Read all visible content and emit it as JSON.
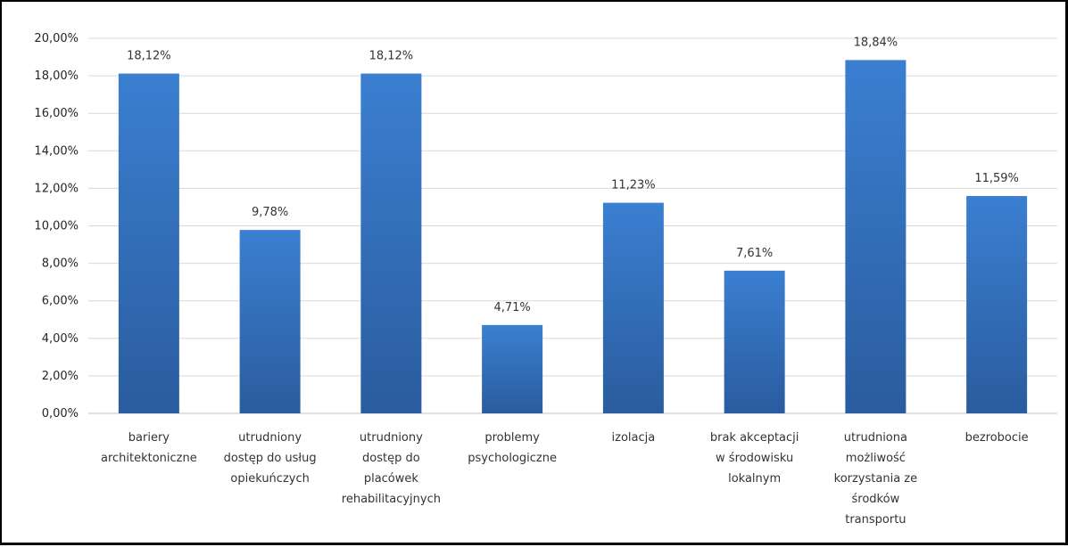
{
  "chart_data": {
    "type": "bar",
    "categories": [
      [
        "bariery",
        "architektoniczne"
      ],
      [
        "utrudniony",
        "dostęp do usług",
        "opiekuńczych"
      ],
      [
        "utrudniony",
        "dostęp do",
        "placówek",
        "rehabilitacyjnych"
      ],
      [
        "problemy",
        "psychologiczne"
      ],
      [
        "izolacja"
      ],
      [
        "brak akceptacji",
        "w środowisku",
        "lokalnym"
      ],
      [
        "utrudniona",
        "możliwość",
        "korzystania ze",
        "środków",
        "transportu"
      ],
      [
        "bezrobocie"
      ]
    ],
    "values": [
      18.12,
      9.78,
      18.12,
      4.71,
      11.23,
      7.61,
      18.84,
      11.59
    ],
    "value_labels": [
      "18,12%",
      "9,78%",
      "18,12%",
      "4,71%",
      "11,23%",
      "7,61%",
      "18,84%",
      "11,59%"
    ],
    "ylim": [
      0,
      20
    ],
    "yticks": [
      0,
      2,
      4,
      6,
      8,
      10,
      12,
      14,
      16,
      18,
      20
    ],
    "ytick_labels": [
      "0,00%",
      "2,00%",
      "4,00%",
      "6,00%",
      "8,00%",
      "10,00%",
      "12,00%",
      "14,00%",
      "16,00%",
      "18,00%",
      "20,00%"
    ],
    "title": "",
    "xlabel": "",
    "ylabel": "",
    "grid": true,
    "legend": "none",
    "colors": {
      "bar_top": "#3b7fd1",
      "bar_bottom": "#2a5c9e",
      "grid": "#d9d9d9",
      "axis": "#bfbfbf"
    }
  }
}
